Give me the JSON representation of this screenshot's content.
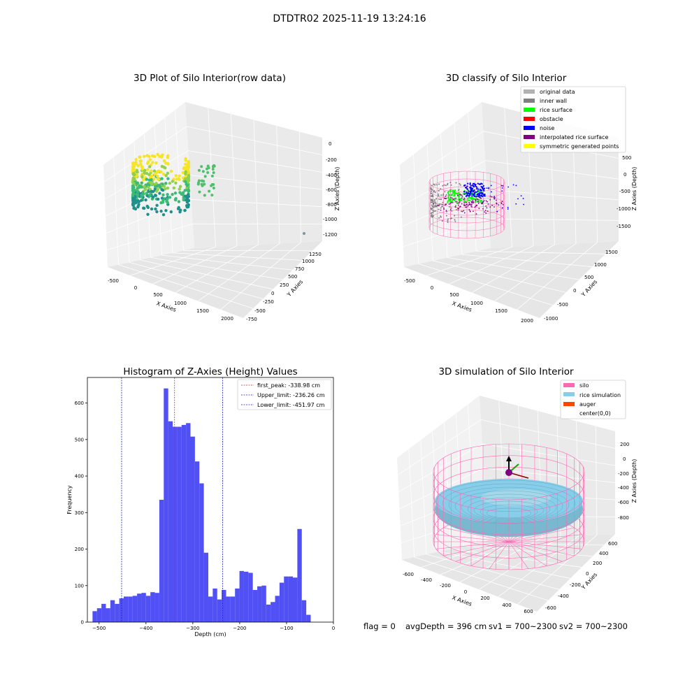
{
  "suptitle": "DTDTR02 2025-11-19 13:24:16",
  "footer": {
    "flag": "flag = 0",
    "avg": "avgDepth = 396 cm",
    "sv1": "sv1 = 700~2300",
    "sv2": "sv2 = 700~2300"
  },
  "colors": {
    "hist_bar": "#5050f5",
    "first_peak": "#d62728",
    "limits": "#1f1fd0",
    "original": "#b2b2b2",
    "inner_wall": "#808080",
    "rice_surface": "#00ff00",
    "obstacle": "#ff0000",
    "noise": "#0000ff",
    "interp_surface": "#800080",
    "symmetric": "#ffff00",
    "silo": "#ff69b4",
    "rice_sim": "#87ceeb",
    "auger": "#ff4500"
  },
  "panel_raw": {
    "title": "3D Plot of Silo Interior(row data)",
    "xlabel": "X Axies",
    "ylabel": "Y Axies",
    "zlabel": "Z Axies (Depth)",
    "xticks": [
      "-500",
      "0",
      "500",
      "1000",
      "1500",
      "2000"
    ],
    "yticks": [
      "-750",
      "-500",
      "-250",
      "0",
      "250",
      "500",
      "750",
      "1000",
      "1250"
    ],
    "zticks": [
      "0",
      "-200",
      "-400",
      "-600",
      "-800",
      "-1000",
      "-1200"
    ]
  },
  "panel_classify": {
    "title": "3D classify of Silo Interior",
    "xlabel": "X Axies",
    "ylabel": "Y Axies",
    "zlabel": "Z Axies (Depth)",
    "xticks": [
      "-500",
      "0",
      "500",
      "1000",
      "1500",
      "2000"
    ],
    "yticks": [
      "-1000",
      "-500",
      "0",
      "500",
      "1000",
      "1500"
    ],
    "zticks": [
      "500",
      "0",
      "-500",
      "-1000",
      "-1500"
    ],
    "legend": [
      "original data",
      "inner wall",
      "rice surface",
      "obstacle",
      "noise",
      "interpolated rice surface",
      "symmetric generated points"
    ]
  },
  "panel_sim": {
    "title": "3D simulation of Silo Interior",
    "xlabel": "X Axies",
    "ylabel": "Y Axies",
    "zlabel": "Z Axies (Depth)",
    "xticks": [
      "-600",
      "-400",
      "-200",
      "0",
      "200",
      "400",
      "600"
    ],
    "yticks": [
      "-600",
      "-400",
      "-200",
      "0",
      "200",
      "400",
      "600"
    ],
    "zticks": [
      "200",
      "0",
      "-200",
      "-400",
      "-600",
      "-800"
    ],
    "legend": [
      "silo",
      "rice simulation",
      "auger",
      "center(0,0)"
    ]
  },
  "chart_data": {
    "type": "bar",
    "title": "Histogram of Z-Axies (Height) Values",
    "xlabel": "Depth (cm)",
    "ylabel": "Frequency",
    "xlim": [
      -525,
      0
    ],
    "ylim": [
      0,
      670
    ],
    "xticks": [
      -500,
      -400,
      -300,
      -200,
      -100,
      0
    ],
    "yticks": [
      0,
      100,
      200,
      300,
      400,
      500,
      600
    ],
    "bin_start": -514,
    "bin_width": 9.5,
    "values": [
      30,
      38,
      50,
      38,
      60,
      50,
      65,
      70,
      70,
      72,
      78,
      80,
      72,
      82,
      80,
      335,
      640,
      550,
      535,
      535,
      540,
      545,
      508,
      440,
      380,
      190,
      70,
      92,
      62,
      88,
      70,
      70,
      92,
      140,
      138,
      135,
      88,
      98,
      100,
      48,
      55,
      72,
      108,
      125,
      125,
      122,
      255,
      60,
      20
    ],
    "lines": [
      {
        "label": "first_peak: -338.98 cm",
        "x": -338.98,
        "color": "#d62728"
      },
      {
        "label": "Upper_limit: -236.26 cm",
        "x": -236.26,
        "color": "#1f1fd0"
      },
      {
        "label": "Lower_limit: -451.97 cm",
        "x": -451.97,
        "color": "#1f1fd0"
      }
    ]
  }
}
